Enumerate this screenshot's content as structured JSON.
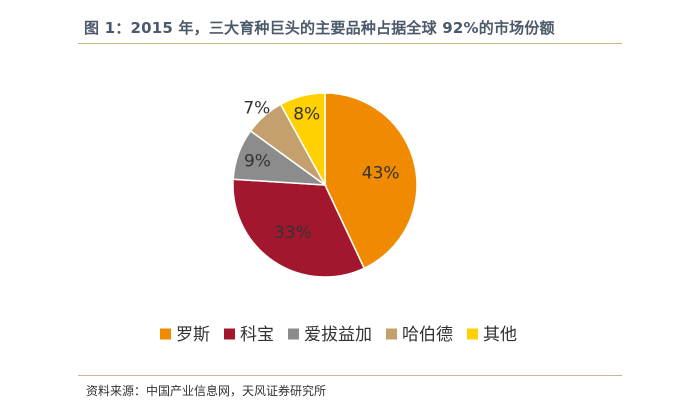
{
  "header": {
    "title": "图 1：2015 年，三大育种巨头的主要品种占据全球 92%的市场份额"
  },
  "footer": {
    "source": "资料来源：中国产业信息网，天风证券研究所"
  },
  "chart_data": {
    "type": "pie",
    "categories": [
      "罗斯",
      "科宝",
      "爱拔益加",
      "哈伯德",
      "其他"
    ],
    "values": [
      43,
      33,
      9,
      7,
      8
    ],
    "labels": [
      "43%",
      "33%",
      "9%",
      "7%",
      "8%"
    ],
    "colors": [
      "#F08A00",
      "#A3172E",
      "#8C8C8C",
      "#C4A06E",
      "#FFD100"
    ],
    "start_angle_deg": 0,
    "direction": "clockwise",
    "legend_position": "bottom",
    "title": ""
  }
}
